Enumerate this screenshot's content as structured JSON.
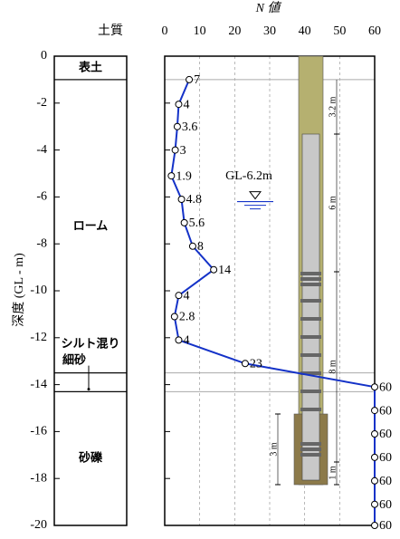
{
  "chart_data": {
    "type": "line",
    "x_label": "N 値",
    "y_label": "深度 (GL - m)",
    "soil_label": "土質",
    "layers": [
      {
        "name": "表土",
        "top": 0,
        "bottom": -1
      },
      {
        "name": "ローム",
        "top": -1,
        "bottom": -13.5
      },
      {
        "name": "シルト混り細砂",
        "top": -13.5,
        "bottom": -14.3
      },
      {
        "name": "砂礫",
        "top": -14.3,
        "bottom": -20
      }
    ],
    "series": [
      {
        "color": "#1432c8",
        "x": [
          7,
          4,
          3.6,
          3,
          1.9,
          4.8,
          5.6,
          8,
          14,
          4,
          2.8,
          4,
          23,
          60,
          60,
          60,
          60,
          60,
          60,
          60
        ],
        "values": [
          -1,
          -2.05,
          -3,
          -4,
          -5.1,
          -6.1,
          -7.1,
          -8.1,
          -9.1,
          -10.2,
          -11.1,
          -12.1,
          -13.1,
          -14.1,
          -15.1,
          -16.1,
          -17.1,
          -18.1,
          -19.1,
          -20
        ]
      }
    ],
    "water_level": {
      "value": -6.2,
      "label": "GL-6.2m"
    },
    "casing_annotations": [
      "3.2 m",
      "6 m",
      "8 m",
      "3 m",
      "1 m"
    ],
    "xlim": [
      0,
      60
    ],
    "xticks": [
      0,
      10,
      20,
      30,
      40,
      50,
      60
    ],
    "ylim": [
      -20,
      0
    ],
    "yticks": [
      0,
      -2,
      -4,
      -6,
      -8,
      -10,
      -12,
      -14,
      -16,
      -18,
      -20
    ],
    "grid": true
  }
}
